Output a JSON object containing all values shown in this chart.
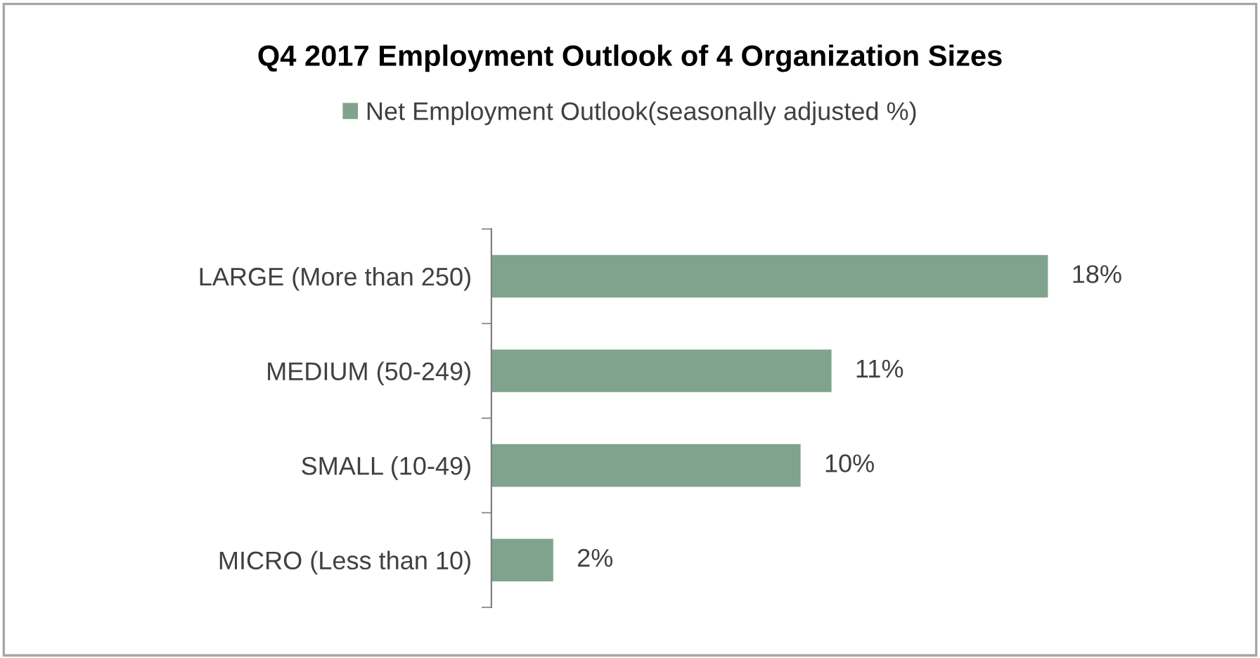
{
  "chart_data": {
    "type": "bar",
    "orientation": "horizontal",
    "title": "Q4 2017 Employment Outlook of 4 Organization Sizes",
    "categories": [
      "LARGE (More than 250)",
      "MEDIUM (50-249)",
      "SMALL (10-49)",
      "MICRO (Less than 10)"
    ],
    "series": [
      {
        "name": "Net Employment Outlook(seasonally adjusted %)",
        "color": "#7fa38c",
        "values": [
          18,
          11,
          10,
          2
        ],
        "value_labels": [
          "18%",
          "11%",
          "10%",
          "2%"
        ]
      }
    ],
    "legend": "top",
    "grid": false,
    "tick_labels": "y"
  }
}
